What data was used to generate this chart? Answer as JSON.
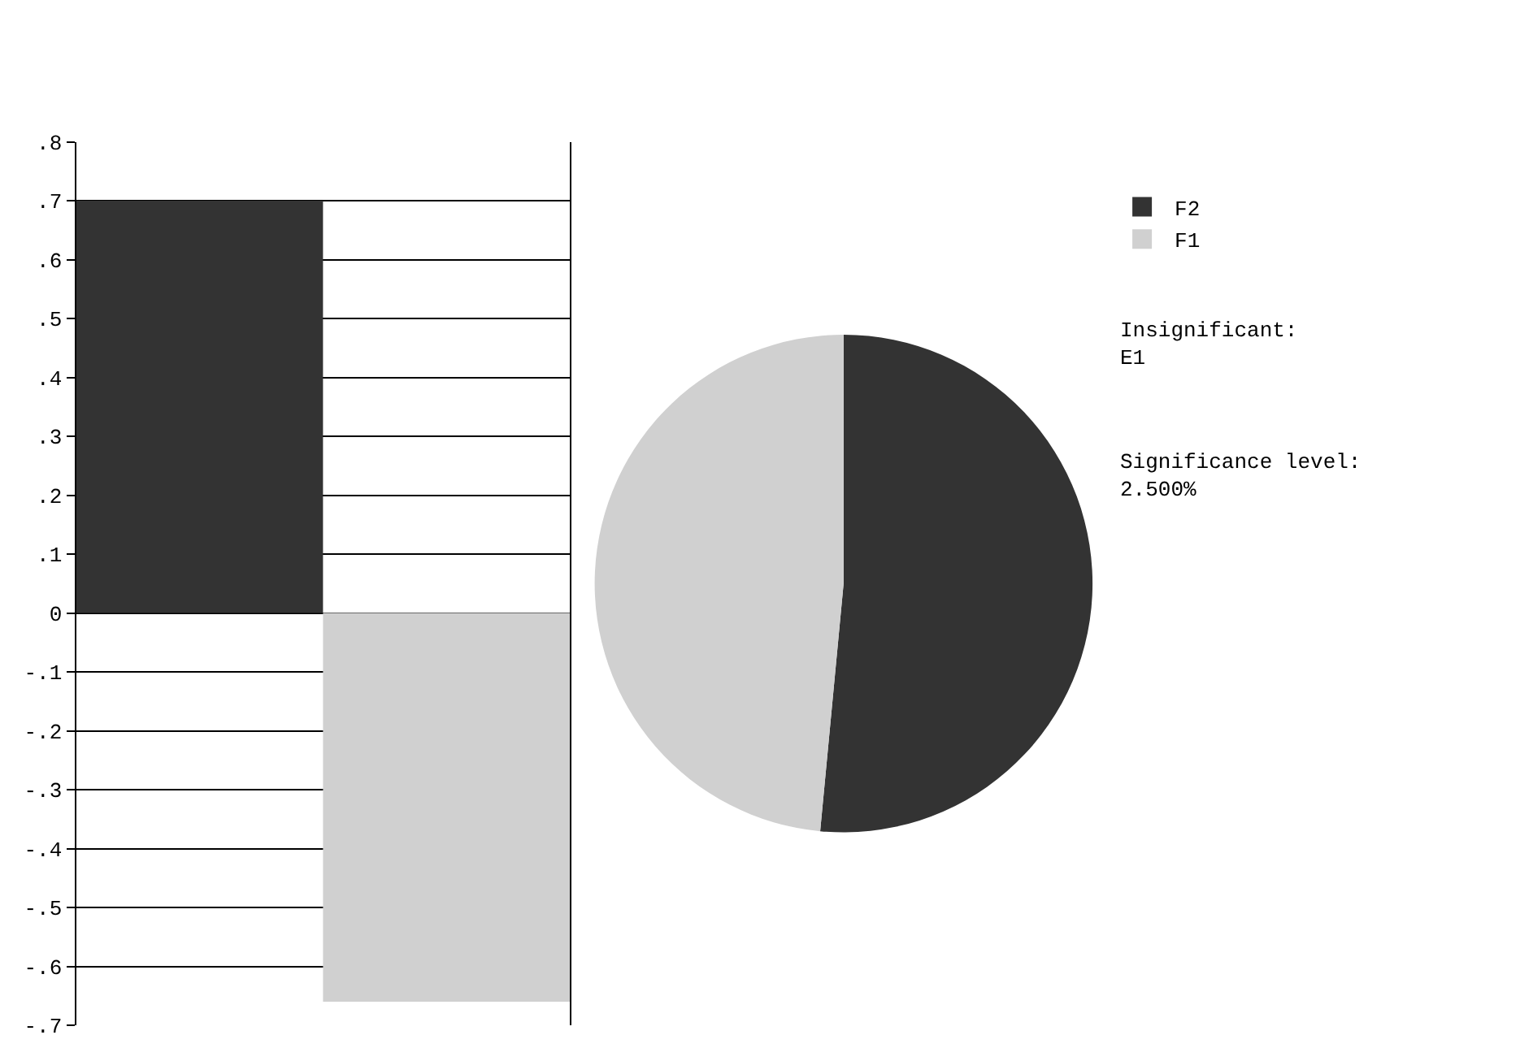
{
  "chart_data": [
    {
      "type": "bar",
      "categories": [
        null,
        null
      ],
      "values": [
        0.7,
        -0.66
      ],
      "colors": [
        "#333333",
        "#d0d0d0"
      ],
      "ylim": [
        -0.7,
        0.8
      ],
      "yticks": [
        {
          "value": -0.7,
          "label": "-.7"
        },
        {
          "value": -0.6,
          "label": "-.6"
        },
        {
          "value": -0.5,
          "label": "-.5"
        },
        {
          "value": -0.4,
          "label": "-.4"
        },
        {
          "value": -0.3,
          "label": "-.3"
        },
        {
          "value": -0.2,
          "label": "-.2"
        },
        {
          "value": -0.1,
          "label": "-.1"
        },
        0,
        {
          "value": 0.1,
          "label": ".1"
        },
        {
          "value": 0.2,
          "label": ".2"
        },
        {
          "value": 0.3,
          "label": ".3"
        },
        {
          "value": 0.4,
          "label": ".4"
        },
        {
          "value": 0.5,
          "label": ".5"
        },
        {
          "value": 0.6,
          "label": ".6"
        },
        {
          "value": 0.7,
          "label": ".7"
        },
        {
          "value": 0.8,
          "label": ".8"
        }
      ],
      "grid": "y",
      "legend": false,
      "tick_labels": "y"
    },
    {
      "type": "pie",
      "categories": [
        "F2",
        "F1"
      ],
      "values": [
        51.5,
        48.5
      ],
      "colors": [
        "#333333",
        "#d0d0d0"
      ],
      "legend": "top right",
      "annotations": [
        "Insignificant:\nE1",
        "Significance level:\n2.500%"
      ]
    }
  ]
}
